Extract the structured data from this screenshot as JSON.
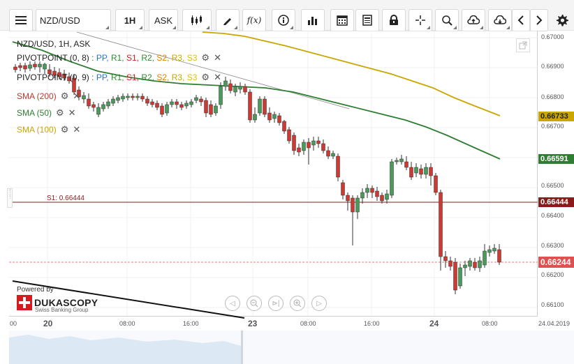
{
  "toolbar": {
    "symbol": "NZD/USD",
    "timeframe": "1H",
    "price_side": "ASK",
    "fx_label": "f(x)"
  },
  "chart": {
    "title": "NZD/USD, 1H, ASK",
    "legend": [
      {
        "name": "PIVOTPOINT (0, 8)",
        "pivots": [
          {
            "label": "PP",
            "color": "#1e73e8"
          },
          {
            "label": "R1",
            "color": "#2e8b2e"
          },
          {
            "label": "S1",
            "color": "#d42020"
          },
          {
            "label": "R2",
            "color": "#2e8b2e"
          },
          {
            "label": "S2",
            "color": "#e08000"
          },
          {
            "label": "R3",
            "color": "#c8a800"
          },
          {
            "label": "S3",
            "color": "#e0c000"
          }
        ]
      },
      {
        "name": "PIVOTPOINT (0, 9)",
        "pivots": [
          {
            "label": "PP",
            "color": "#1e73e8"
          },
          {
            "label": "R1",
            "color": "#2e8b2e"
          },
          {
            "label": "S1",
            "color": "#d42020"
          },
          {
            "label": "R2",
            "color": "#2e8b2e"
          },
          {
            "label": "S2",
            "color": "#e08000"
          },
          {
            "label": "R3",
            "color": "#c8a800"
          },
          {
            "label": "S3",
            "color": "#e0c000"
          }
        ]
      },
      {
        "name": "SMA (200)",
        "color": "#c0392b"
      },
      {
        "name": "SMA (50)",
        "color": "#2e7d32"
      },
      {
        "name": "SMA (100)",
        "color": "#c9a600"
      }
    ],
    "s1_label": "S1: 0.66444",
    "price_tags": [
      {
        "value": "0.66733",
        "color": "#c9a600",
        "text_color": "#222"
      },
      {
        "value": "0.66591",
        "color": "#2e7d32",
        "text_color": "#ffffff"
      },
      {
        "value": "0.66444",
        "color": "#8b1a1a",
        "text_color": "#ffffff"
      },
      {
        "value": "0.66244",
        "color": "#e05050",
        "text_color": "#ffffff"
      }
    ],
    "y_ticks": [
      "0.67000",
      "0.66900",
      "0.66800",
      "0.66700",
      "0.66500",
      "0.66400",
      "0.66300",
      "0.66200",
      "0.66100"
    ],
    "x_ticks": [
      {
        "label": "00",
        "bold": false
      },
      {
        "label": "20",
        "bold": true
      },
      {
        "label": "08:00",
        "bold": false
      },
      {
        "label": "16:00",
        "bold": false
      },
      {
        "label": "23",
        "bold": true
      },
      {
        "label": "08:00",
        "bold": false
      },
      {
        "label": "16:00",
        "bold": false
      },
      {
        "label": "24",
        "bold": true
      },
      {
        "label": "08:00",
        "bold": false
      },
      {
        "label": "24.04.2019",
        "bold": false
      }
    ],
    "powered_by": "Powered by",
    "brand": "DUKASCOPY",
    "brand_sub": "Swiss Banking Group"
  },
  "colors": {
    "bull": "#4a9a5a",
    "bear": "#cc3a33",
    "sma50": "#2e7d32",
    "sma100": "#c9a600",
    "s1_line": "#8b1a1a"
  }
}
